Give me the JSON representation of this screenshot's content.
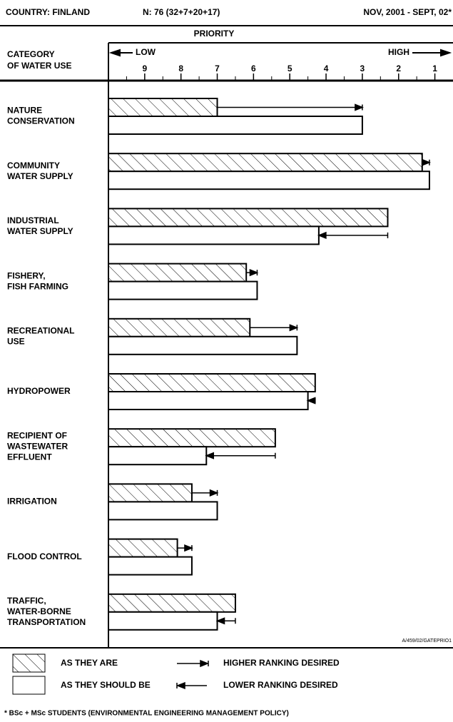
{
  "header": {
    "country": "COUNTRY:  FINLAND",
    "n": "N: 76 (32+7+20+17)",
    "period": "NOV, 2001 - SEPT, 02*"
  },
  "chart_data": {
    "type": "bar",
    "orientation": "horizontal",
    "axis_title": "PRIORITY",
    "low_label": "LOW",
    "high_label": "HIGH",
    "category_header": [
      "CATEGORY",
      "OF WATER USE"
    ],
    "categories": [
      [
        "NATURE",
        "CONSERVATION"
      ],
      [
        "COMMUNITY",
        "WATER SUPPLY"
      ],
      [
        "INDUSTRIAL",
        "WATER SUPPLY"
      ],
      [
        "FISHERY,",
        "FISH FARMING"
      ],
      [
        "RECREATIONAL",
        "USE"
      ],
      [
        "HYDROPOWER"
      ],
      [
        "RECIPIENT OF",
        "WASTEWATER",
        "EFFLUENT"
      ],
      [
        "IRRIGATION"
      ],
      [
        "FLOOD CONTROL"
      ],
      [
        "TRAFFIC,",
        "WATER-BORNE",
        "TRANSPORTATION"
      ]
    ],
    "series": [
      {
        "name": "AS THEY ARE",
        "pattern": "hatch",
        "color": "#000000",
        "values": [
          7.0,
          1.35,
          2.3,
          6.2,
          6.1,
          4.3,
          5.4,
          7.7,
          8.1,
          6.5
        ]
      },
      {
        "name": "AS THEY SHOULD BE",
        "pattern": "none",
        "color": "#000000",
        "values": [
          3.0,
          1.15,
          4.2,
          5.9,
          4.8,
          4.5,
          7.3,
          7.0,
          7.7,
          7.0
        ]
      }
    ],
    "arrow_legend": [
      "HIGHER RANKING DESIRED",
      "LOWER RANKING DESIRED"
    ],
    "xlim": [
      10,
      0.5
    ],
    "xticks": [
      9,
      8,
      7,
      6,
      5,
      4,
      3,
      2,
      1
    ],
    "xticks_minor": [
      9.5,
      8.5,
      7.5,
      6.5,
      5.5,
      4.5,
      3.5,
      2.5,
      1.5
    ],
    "reference": "A/459/02/GATEPRIO1",
    "footnote": "* BSc + MSc STUDENTS (ENVIRONMENTAL ENGINEERING MANAGEMENT POLICY)"
  }
}
